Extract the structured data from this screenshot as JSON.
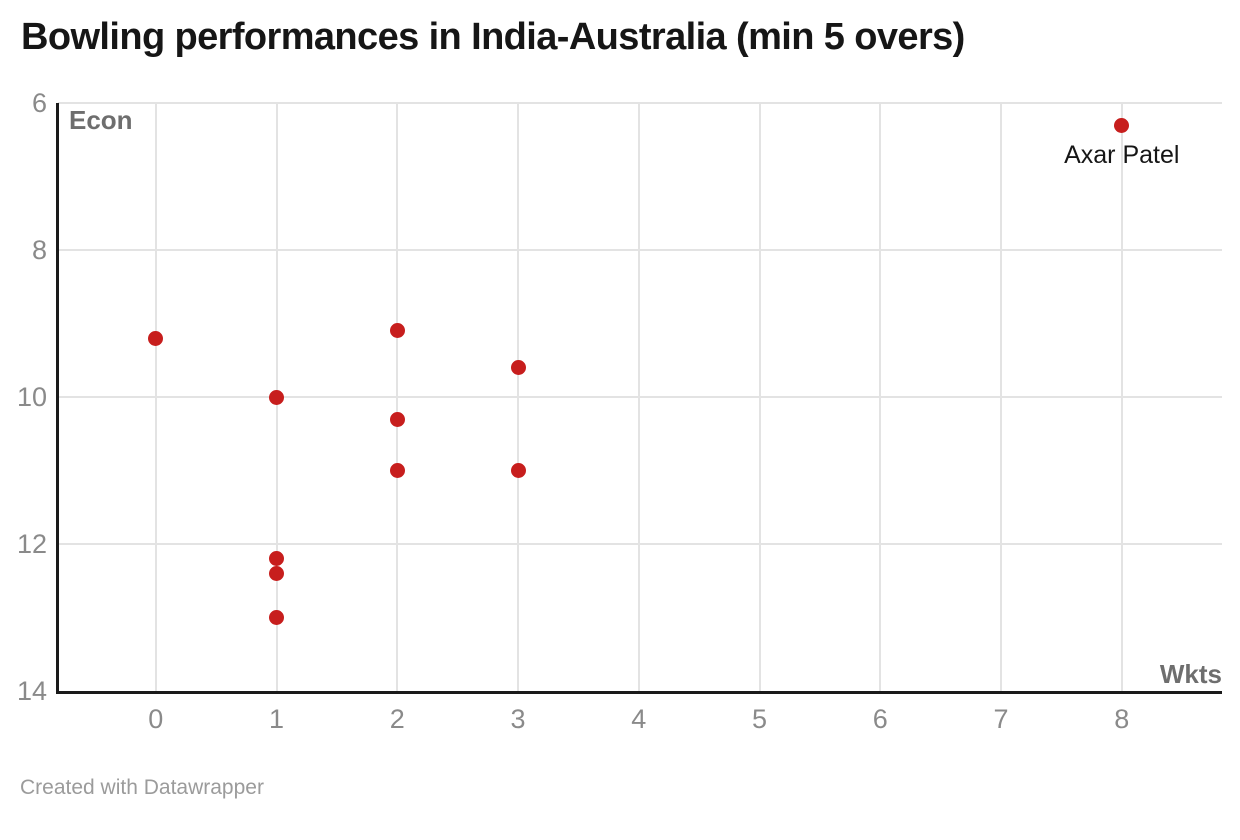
{
  "header": {
    "title": "Bowling performances in India-Australia (min 5 overs)"
  },
  "footer": {
    "attribution": "Created with Datawrapper"
  },
  "colors": {
    "point": "#c71e1d",
    "grid": "#e3e3e3",
    "axis": "#1a1a1a",
    "tick_text": "#8a8a8a",
    "axis_title_text": "#6e6e6e",
    "title_text": "#161616",
    "attribution_text": "#9b9b9b"
  },
  "chart_data": {
    "type": "scatter",
    "title": "Bowling performances in India-Australia (min 5 overs)",
    "xlabel": "Wkts",
    "ylabel": "Econ",
    "x_domain": [
      -0.81,
      8.83
    ],
    "y_domain_top_to_bottom": [
      6,
      14
    ],
    "x_ticks": [
      0,
      1,
      2,
      3,
      4,
      5,
      6,
      7,
      8
    ],
    "y_ticks": [
      6,
      8,
      10,
      12,
      14
    ],
    "grid": true,
    "legend": "none",
    "point_color": "#c71e1d",
    "points": [
      {
        "wkts": 0,
        "econ": 9.2
      },
      {
        "wkts": 1,
        "econ": 10.0
      },
      {
        "wkts": 1,
        "econ": 12.2
      },
      {
        "wkts": 1,
        "econ": 12.4
      },
      {
        "wkts": 1,
        "econ": 13.0
      },
      {
        "wkts": 2,
        "econ": 9.1
      },
      {
        "wkts": 2,
        "econ": 10.3
      },
      {
        "wkts": 2,
        "econ": 11.0
      },
      {
        "wkts": 3,
        "econ": 9.6
      },
      {
        "wkts": 3,
        "econ": 11.0
      },
      {
        "wkts": 8,
        "econ": 6.3,
        "label": "Axar Patel"
      }
    ]
  }
}
